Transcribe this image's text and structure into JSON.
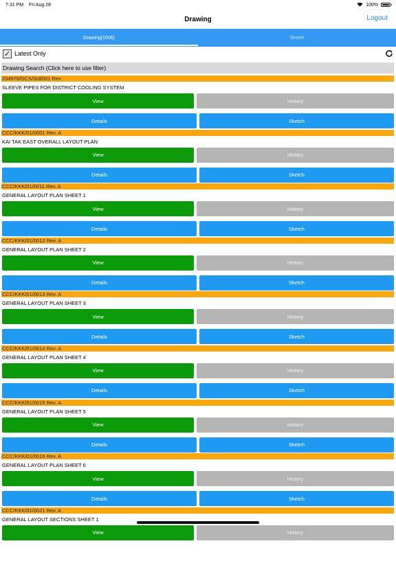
{
  "status": {
    "time": "7:31 PM",
    "date": "Fri Aug 28",
    "battery": "100%"
  },
  "nav": {
    "title": "Drawing",
    "logout": "Logout"
  },
  "tabs": [
    {
      "label": "Drawing(1006)",
      "active": true
    },
    {
      "label": "Sketch",
      "active": false
    }
  ],
  "filter": {
    "latest_only_label": "Latest Only",
    "checked": true
  },
  "search": {
    "label": "Drawing Search (Click here to use filter)"
  },
  "buttons": {
    "view": "View",
    "history": "History",
    "details": "Details",
    "sketch": "Sketch"
  },
  "items": [
    {
      "code": "234976/DCS/3rd/001 Rev.",
      "desc": "SLEEVE PIPES FOR DISTRICT COOLING SYSTEM"
    },
    {
      "code": "CCC/KKK/01/0001 Rev. A",
      "desc": "KAI TAK EAST OVERALL LAYOUT PLAN"
    },
    {
      "code": "CCC/KKK/01/0011 Rev. A",
      "desc": "GENERAL LAYOUT PLAN SHEET 1"
    },
    {
      "code": "CCC/KKK/01/0012 Rev. A",
      "desc": "GENERAL LAYOUT PLAN SHEET 2"
    },
    {
      "code": "CCC/KKK/01/0013 Rev. A",
      "desc": "GENERAL LAYOUT PLAN SHEET 3"
    },
    {
      "code": "CCC/KKK/01/0014 Rev. A",
      "desc": "GENERAL LAYOUT PLAN SHEET 4"
    },
    {
      "code": "CCC/KKK/01/0015 Rev. A",
      "desc": "GENERAL LAYOUT PLAN SHEET 5"
    },
    {
      "code": "CCC/KKK/01/0016 Rev. A",
      "desc": "GENERAL LAYOUT PLAN SHEET 6"
    },
    {
      "code": "CCC/KKK/01/0021 Rev. A",
      "desc": "GENERAL LAYOUT SECTIONS SHEET 1"
    }
  ],
  "colors": {
    "tab_bar": "#3399f3",
    "code_bar": "#f9a70b",
    "view": "#0a9a0a",
    "history": "#b4b4b4",
    "details": "#1f9af2"
  }
}
